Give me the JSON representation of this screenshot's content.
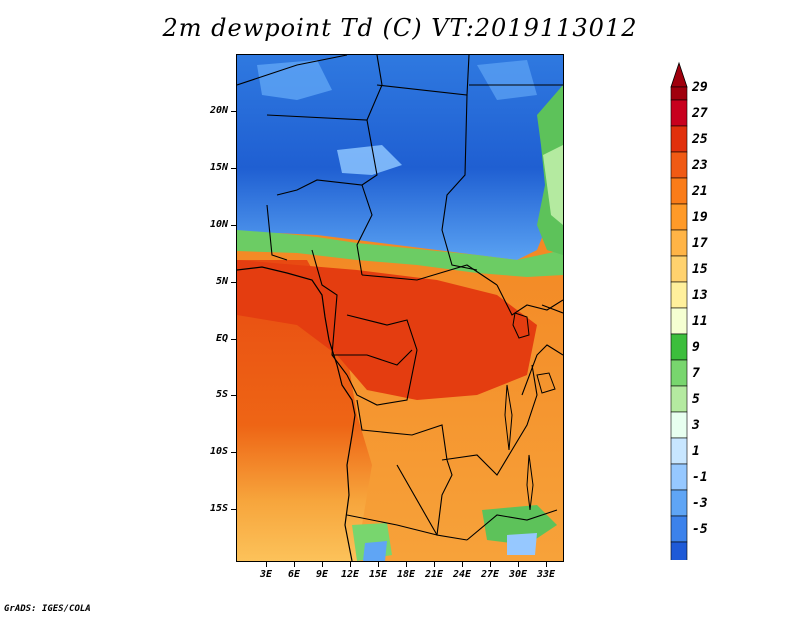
{
  "title": "2m dewpoint Td (C) VT:2019113012",
  "credit": "GrADS: IGES/COLA",
  "latitude_labels": [
    "20N",
    "15N",
    "10N",
    "5N",
    "EQ",
    "5S",
    "10S",
    "15S"
  ],
  "longitude_labels": [
    "3E",
    "6E",
    "9E",
    "12E",
    "15E",
    "18E",
    "21E",
    "24E",
    "27E",
    "30E",
    "33E"
  ],
  "colorbar": {
    "unit": "C",
    "labels": [
      "29",
      "27",
      "25",
      "23",
      "21",
      "19",
      "17",
      "15",
      "13",
      "11",
      "9",
      "7",
      "5",
      "3",
      "1",
      "-1",
      "-3",
      "-5"
    ],
    "colors": [
      "#a0000d",
      "#c8001e",
      "#e1300c",
      "#f05a14",
      "#fa7c19",
      "#ff9a28",
      "#ffb446",
      "#ffd26e",
      "#fff09c",
      "#f5ffd2",
      "#3cbe3c",
      "#78d66e",
      "#b4eaa0",
      "#e8fff0",
      "#c8e6ff",
      "#96c8ff",
      "#5fa5f5",
      "#3c82eb",
      "#1e5ad7"
    ],
    "top_arrow_color": "#a0000d",
    "bottom_arrow_color": "#1e5ad7"
  },
  "map": {
    "region": "Central Africa",
    "lon_range": [
      0,
      35
    ],
    "lat_range": [
      -20,
      24
    ]
  }
}
